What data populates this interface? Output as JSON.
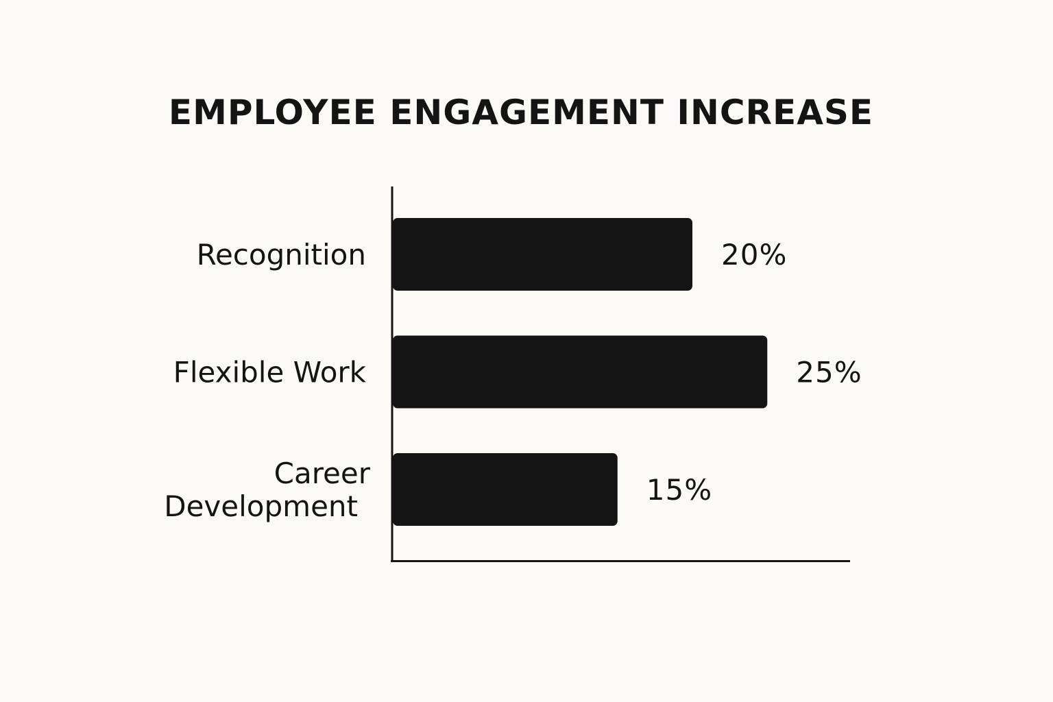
{
  "chart_data": {
    "type": "bar",
    "orientation": "horizontal",
    "title": "EMPLOYEE ENGAGEMENT INCREASE",
    "xlabel": "",
    "ylabel": "",
    "categories": [
      [
        "Recognition"
      ],
      [
        "Flexible Work"
      ],
      [
        "Career",
        "Development"
      ]
    ],
    "values": [
      20,
      25,
      15
    ],
    "value_labels": [
      "20%",
      "25%",
      "15%"
    ],
    "grid": false,
    "legend": "none",
    "bar_color": "#141414",
    "axis_color": "#141414",
    "background": "#fbfaf6"
  }
}
